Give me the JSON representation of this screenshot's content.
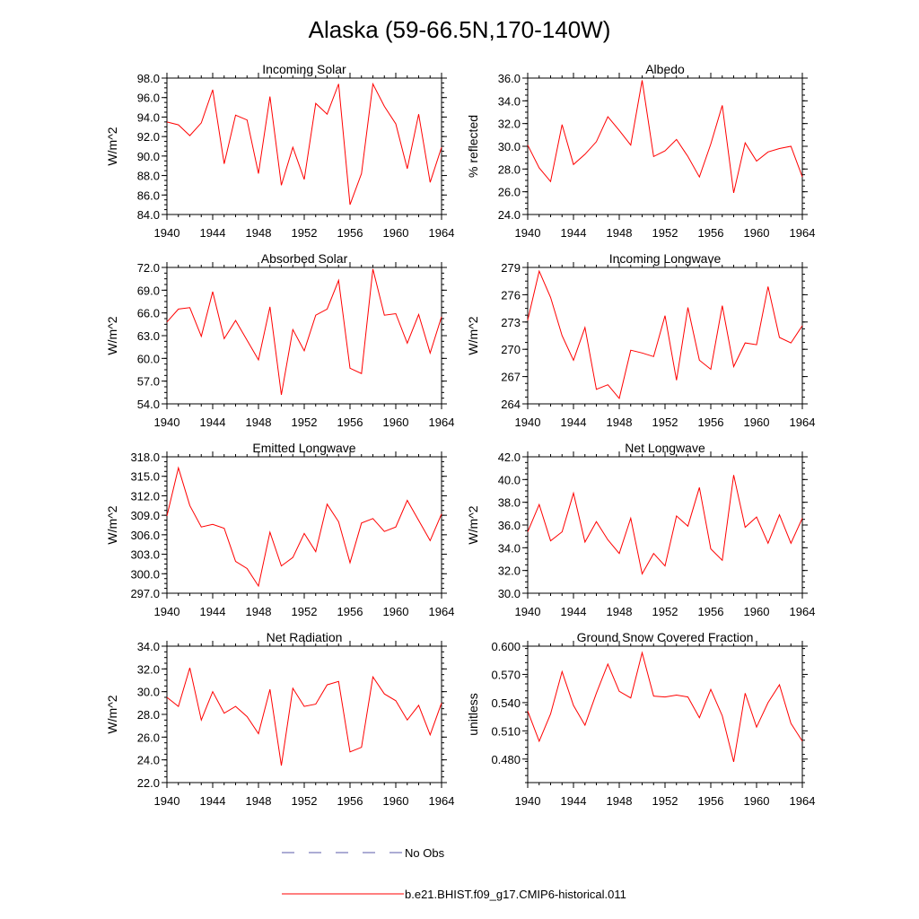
{
  "title": "Alaska (59-66.5N,170-140W)",
  "legend": {
    "obs_label": "No Obs",
    "obs_color": "#5a5aa8",
    "model_label": "b.e21.BHIST.f09_g17.CMIP6-historical.011",
    "model_color": "#ff0000"
  },
  "chart_data": [
    {
      "type": "line",
      "title": "Incoming Solar",
      "ylabel": "W/m^2",
      "xlim": [
        1940,
        1964
      ],
      "ylim": [
        84.0,
        98.0
      ],
      "yticks": [
        "84.0",
        "86.0",
        "88.0",
        "90.0",
        "92.0",
        "94.0",
        "96.0",
        "98.0"
      ],
      "xticks": [
        "1940",
        "1944",
        "1948",
        "1952",
        "1956",
        "1960",
        "1964"
      ],
      "x": [
        1940,
        1941,
        1942,
        1943,
        1944,
        1945,
        1946,
        1947,
        1948,
        1949,
        1950,
        1951,
        1952,
        1953,
        1954,
        1955,
        1956,
        1957,
        1958,
        1959,
        1960,
        1961,
        1962,
        1963,
        1964
      ],
      "series": [
        {
          "values": [
            93.5,
            93.2,
            92.1,
            93.4,
            96.8,
            89.2,
            94.2,
            93.7,
            88.2,
            96.1,
            87.0,
            90.9,
            87.6,
            95.4,
            94.3,
            97.4,
            85.0,
            88.2,
            97.4,
            95.1,
            93.3,
            88.7,
            94.3,
            87.3,
            90.9
          ]
        }
      ]
    },
    {
      "type": "line",
      "title": "Albedo",
      "ylabel": "% reflected",
      "xlim": [
        1940,
        1964
      ],
      "ylim": [
        24.0,
        36.0
      ],
      "yticks": [
        "24.0",
        "26.0",
        "28.0",
        "30.0",
        "32.0",
        "34.0",
        "36.0"
      ],
      "xticks": [
        "1940",
        "1944",
        "1948",
        "1952",
        "1956",
        "1960",
        "1964"
      ],
      "x": [
        1940,
        1941,
        1942,
        1943,
        1944,
        1945,
        1946,
        1947,
        1948,
        1949,
        1950,
        1951,
        1952,
        1953,
        1954,
        1955,
        1956,
        1957,
        1958,
        1959,
        1960,
        1961,
        1962,
        1963,
        1964
      ],
      "series": [
        {
          "values": [
            30.1,
            28.1,
            26.9,
            31.9,
            28.4,
            29.3,
            30.4,
            32.6,
            31.4,
            30.1,
            35.8,
            29.1,
            29.6,
            30.6,
            29.1,
            27.3,
            30.2,
            33.6,
            25.9,
            30.3,
            28.7,
            29.5,
            29.8,
            30.0,
            27.3
          ]
        }
      ]
    },
    {
      "type": "line",
      "title": "Absorbed Solar",
      "ylabel": "W/m^2",
      "xlim": [
        1940,
        1964
      ],
      "ylim": [
        54.0,
        72.0
      ],
      "yticks": [
        "54.0",
        "57.0",
        "60.0",
        "63.0",
        "66.0",
        "69.0",
        "72.0"
      ],
      "xticks": [
        "1940",
        "1944",
        "1948",
        "1952",
        "1956",
        "1960",
        "1964"
      ],
      "x": [
        1940,
        1941,
        1942,
        1943,
        1944,
        1945,
        1946,
        1947,
        1948,
        1949,
        1950,
        1951,
        1952,
        1953,
        1954,
        1955,
        1956,
        1957,
        1958,
        1959,
        1960,
        1961,
        1962,
        1963,
        1964
      ],
      "series": [
        {
          "values": [
            64.8,
            66.5,
            66.7,
            62.9,
            68.8,
            62.6,
            65.0,
            62.4,
            59.8,
            66.8,
            55.2,
            63.8,
            61.0,
            65.7,
            66.5,
            70.3,
            58.7,
            58.0,
            71.8,
            65.7,
            65.9,
            62.0,
            65.8,
            60.7,
            65.5
          ]
        }
      ]
    },
    {
      "type": "line",
      "title": "Incoming Longwave",
      "ylabel": "W/m^2",
      "xlim": [
        1940,
        1964
      ],
      "ylim": [
        264,
        279
      ],
      "yticks": [
        "264",
        "267",
        "270",
        "273",
        "276",
        "279"
      ],
      "xticks": [
        "1940",
        "1944",
        "1948",
        "1952",
        "1956",
        "1960",
        "1964"
      ],
      "x": [
        1940,
        1941,
        1942,
        1943,
        1944,
        1945,
        1946,
        1947,
        1948,
        1949,
        1950,
        1951,
        1952,
        1953,
        1954,
        1955,
        1956,
        1957,
        1958,
        1959,
        1960,
        1961,
        1962,
        1963,
        1964
      ],
      "series": [
        {
          "values": [
            273.2,
            278.6,
            275.7,
            271.5,
            268.8,
            272.4,
            265.6,
            266.1,
            264.6,
            269.9,
            269.6,
            269.2,
            273.7,
            266.6,
            274.6,
            268.8,
            267.8,
            274.8,
            268.1,
            270.7,
            270.5,
            276.9,
            271.3,
            270.7,
            272.6
          ]
        }
      ]
    },
    {
      "type": "line",
      "title": "Emitted Longwave",
      "ylabel": "W/m^2",
      "xlim": [
        1940,
        1964
      ],
      "ylim": [
        297.0,
        318.0
      ],
      "yticks": [
        "297.0",
        "300.0",
        "303.0",
        "306.0",
        "309.0",
        "312.0",
        "315.0",
        "318.0"
      ],
      "xticks": [
        "1940",
        "1944",
        "1948",
        "1952",
        "1956",
        "1960",
        "1964"
      ],
      "x": [
        1940,
        1941,
        1942,
        1943,
        1944,
        1945,
        1946,
        1947,
        1948,
        1949,
        1950,
        1951,
        1952,
        1953,
        1954,
        1955,
        1956,
        1957,
        1958,
        1959,
        1960,
        1961,
        1962,
        1963,
        1964
      ],
      "series": [
        {
          "values": [
            308.9,
            316.3,
            310.5,
            307.2,
            307.6,
            307.0,
            301.9,
            300.8,
            298.1,
            306.4,
            301.2,
            302.5,
            306.2,
            303.4,
            310.7,
            308.0,
            301.7,
            307.8,
            308.5,
            306.5,
            307.2,
            311.3,
            308.2,
            305.1,
            309.2
          ]
        }
      ]
    },
    {
      "type": "line",
      "title": "Net Longwave",
      "ylabel": "W/m^2",
      "xlim": [
        1940,
        1964
      ],
      "ylim": [
        30.0,
        42.0
      ],
      "yticks": [
        "30.0",
        "32.0",
        "34.0",
        "36.0",
        "38.0",
        "40.0",
        "42.0"
      ],
      "xticks": [
        "1940",
        "1944",
        "1948",
        "1952",
        "1956",
        "1960",
        "1964"
      ],
      "x": [
        1940,
        1941,
        1942,
        1943,
        1944,
        1945,
        1946,
        1947,
        1948,
        1949,
        1950,
        1951,
        1952,
        1953,
        1954,
        1955,
        1956,
        1957,
        1958,
        1959,
        1960,
        1961,
        1962,
        1963,
        1964
      ],
      "series": [
        {
          "values": [
            35.4,
            37.8,
            34.6,
            35.4,
            38.8,
            34.5,
            36.3,
            34.7,
            33.5,
            36.6,
            31.7,
            33.5,
            32.4,
            36.8,
            35.9,
            39.3,
            33.9,
            32.9,
            40.4,
            35.8,
            36.7,
            34.4,
            36.9,
            34.4,
            36.6
          ]
        }
      ]
    },
    {
      "type": "line",
      "title": "Net Radiation",
      "ylabel": "W/m^2",
      "xlim": [
        1940,
        1964
      ],
      "ylim": [
        22.0,
        34.0
      ],
      "yticks": [
        "22.0",
        "24.0",
        "26.0",
        "28.0",
        "30.0",
        "32.0",
        "34.0"
      ],
      "xticks": [
        "1940",
        "1944",
        "1948",
        "1952",
        "1956",
        "1960",
        "1964"
      ],
      "x": [
        1940,
        1941,
        1942,
        1943,
        1944,
        1945,
        1946,
        1947,
        1948,
        1949,
        1950,
        1951,
        1952,
        1953,
        1954,
        1955,
        1956,
        1957,
        1958,
        1959,
        1960,
        1961,
        1962,
        1963,
        1964
      ],
      "series": [
        {
          "values": [
            29.5,
            28.7,
            32.1,
            27.5,
            30.0,
            28.1,
            28.7,
            27.8,
            26.3,
            30.2,
            23.5,
            30.3,
            28.7,
            28.9,
            30.6,
            30.9,
            24.7,
            25.1,
            31.3,
            29.8,
            29.2,
            27.5,
            28.8,
            26.2,
            29.0
          ]
        }
      ]
    },
    {
      "type": "line",
      "title": "Ground Snow Covered Fraction",
      "ylabel": "unitless",
      "xlim": [
        1940,
        1964
      ],
      "ylim": [
        0.455,
        0.6
      ],
      "yticks": [
        "0.480",
        "0.510",
        "0.540",
        "0.570",
        "0.600"
      ],
      "xticks": [
        "1940",
        "1944",
        "1948",
        "1952",
        "1956",
        "1960",
        "1964"
      ],
      "x": [
        1940,
        1941,
        1942,
        1943,
        1944,
        1945,
        1946,
        1947,
        1948,
        1949,
        1950,
        1951,
        1952,
        1953,
        1954,
        1955,
        1956,
        1957,
        1958,
        1959,
        1960,
        1961,
        1962,
        1963,
        1964
      ],
      "series": [
        {
          "values": [
            0.531,
            0.499,
            0.528,
            0.573,
            0.537,
            0.516,
            0.55,
            0.581,
            0.552,
            0.545,
            0.593,
            0.547,
            0.546,
            0.548,
            0.546,
            0.524,
            0.554,
            0.526,
            0.477,
            0.55,
            0.514,
            0.54,
            0.559,
            0.518,
            0.499
          ]
        }
      ]
    }
  ]
}
